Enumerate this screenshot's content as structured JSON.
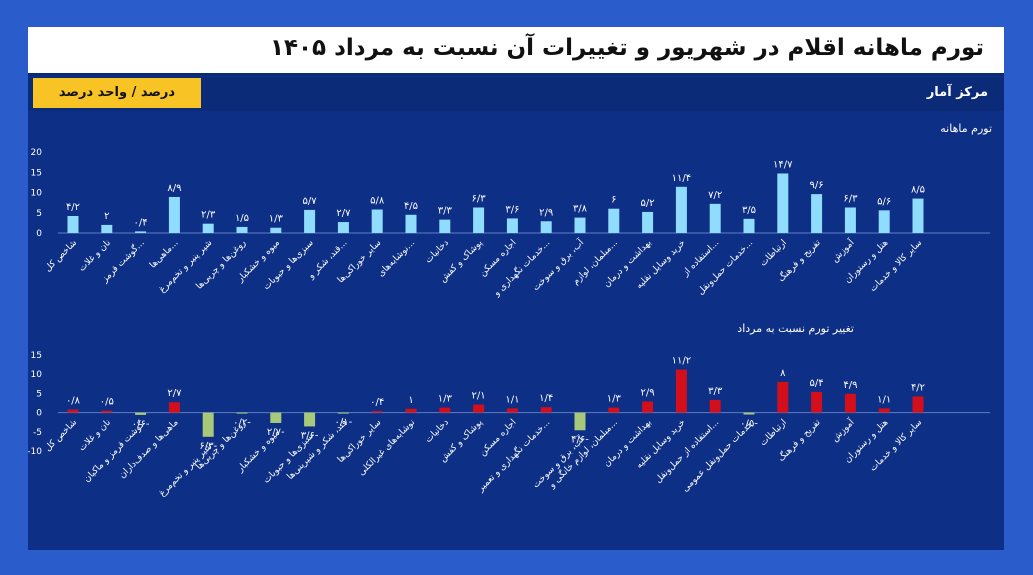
{
  "header": {
    "title": "تورم ماهانه اقلام در شهریور و تغییرات آن نسبت به مرداد ۱۴۰۵",
    "unit_badge": "درصد / واحد درصد",
    "source": "مرکز آمار"
  },
  "colors": {
    "page_bg": "#2a5ccc",
    "frame_bg": "#0d2f86",
    "bar_top": "#8fdcff",
    "bar_increase": "#d40f1c",
    "bar_decrease": "#a9c97a",
    "badge": "#f7c325"
  },
  "chart_data": [
    {
      "type": "bar",
      "title": "تورم ماهانه",
      "ylim": [
        0,
        20
      ],
      "yticks": [
        0,
        5,
        10,
        15,
        20
      ],
      "ytick_labels": [
        "0",
        "5",
        "10",
        "15",
        "20"
      ],
      "categories": [
        "شاخص کل",
        "نان و غلات",
        "گوشت قرمز...",
        "ماهی‌ها...",
        "شیر پنیر و تخم‌مرغ",
        "روغن‌ها و چربی‌ها",
        "میوه و خشکبار",
        "سبزی‌ها و حبوبات",
        "قند، شکر و...",
        "سایر خوراکی‌ها",
        "نوشابه‌های...",
        "دخانیات",
        "پوشاک و کفش",
        "اجاره مسکن",
        "خدمات نگهداری و...",
        "آب، برق و سوخت",
        "مبلمان، لوازم...",
        "بهداشت و درمان",
        "خرید وسایل نقلیه",
        "استفاده از...",
        "خدمات حمل‌ونقل...",
        "ارتباطات",
        "تفریح و فرهنگ",
        "آموزش",
        "هتل و رستوران",
        "سایر کالا و خدمات"
      ],
      "values": [
        4.2,
        2,
        0.4,
        8.9,
        2.3,
        1.5,
        1.3,
        5.7,
        2.7,
        5.8,
        4.5,
        3.3,
        6.3,
        3.6,
        2.9,
        3.8,
        6,
        5.2,
        11.4,
        7.2,
        3.5,
        14.7,
        9.6,
        6.3,
        5.6,
        8.5
      ],
      "value_labels": [
        "۴/۲",
        "۲",
        "۰/۴",
        "۸/۹",
        "۲/۳",
        "۱/۵",
        "۱/۳",
        "۵/۷",
        "۲/۷",
        "۵/۸",
        "۴/۵",
        "۳/۳",
        "۶/۳",
        "۳/۶",
        "۲/۹",
        "۳/۸",
        "۶",
        "۵/۲",
        "۱۱/۴",
        "۷/۲",
        "۳/۵",
        "۱۴/۷",
        "۹/۶",
        "۶/۳",
        "۵/۶",
        "۸/۵"
      ]
    },
    {
      "type": "bar",
      "title": "تغییر تورم نسبت به مرداد",
      "ylim": [
        -10,
        15
      ],
      "yticks": [
        -10,
        -5,
        0,
        5,
        10,
        15
      ],
      "ytick_labels": [
        "-10",
        "-5",
        "0",
        "5",
        "10",
        "15"
      ],
      "categories": [
        "شاخص کل",
        "نان و غلات",
        "گوشت قرمز و ماکیان",
        "ماهی‌ها و صدف‌داران",
        "شیر پنیر و تخم‌مرغ",
        "روغن‌ها و چربی‌ها",
        "میوه و خشکبار",
        "سبزی‌ها و حبوبات",
        "قند، شکر و شیرینی‌ها",
        "سایر خوراکی‌ها",
        "نوشابه‌های غیرالکلی",
        "دخانیات",
        "پوشاک و کفش",
        "اجاره مسکن",
        "خدمات نگهداری و تعمیر...",
        "آب، برق و سوخت",
        "مبلمان، لوازم خانگی و...",
        "بهداشت و درمان",
        "خرید وسایل نقلیه",
        "استفاده از حمل‌ونقل...",
        "خدمات حمل‌ونقل عمومی",
        "ارتباطات",
        "تفریح و فرهنگ",
        "آموزش",
        "هتل و رستوران",
        "سایر کالا و خدمات"
      ],
      "values": [
        0.8,
        0.5,
        -0.6,
        2.7,
        -6.3,
        -0.2,
        -2.7,
        -3.6,
        -0.1,
        0.4,
        1,
        1.3,
        2.1,
        1.1,
        1.4,
        -4.6,
        1.3,
        2.9,
        11.2,
        3.3,
        -0.5,
        8,
        5.4,
        4.9,
        1.1,
        4.2
      ],
      "value_labels": [
        "۰/۸",
        "۰/۵",
        "-۰/۶",
        "۲/۷",
        "-۶/۳",
        "-۰/۲",
        "-۲/۷",
        "-۳/۶",
        "-۰/۱",
        "۰/۴",
        "۱",
        "۱/۳",
        "۲/۱",
        "۱/۱",
        "۱/۴",
        "-۴/۶",
        "۱/۳",
        "۲/۹",
        "۱۱/۲",
        "۳/۳",
        "-۰/۵",
        "۸",
        "۵/۴",
        "۴/۹",
        "۱/۱",
        "۴/۲"
      ]
    }
  ]
}
